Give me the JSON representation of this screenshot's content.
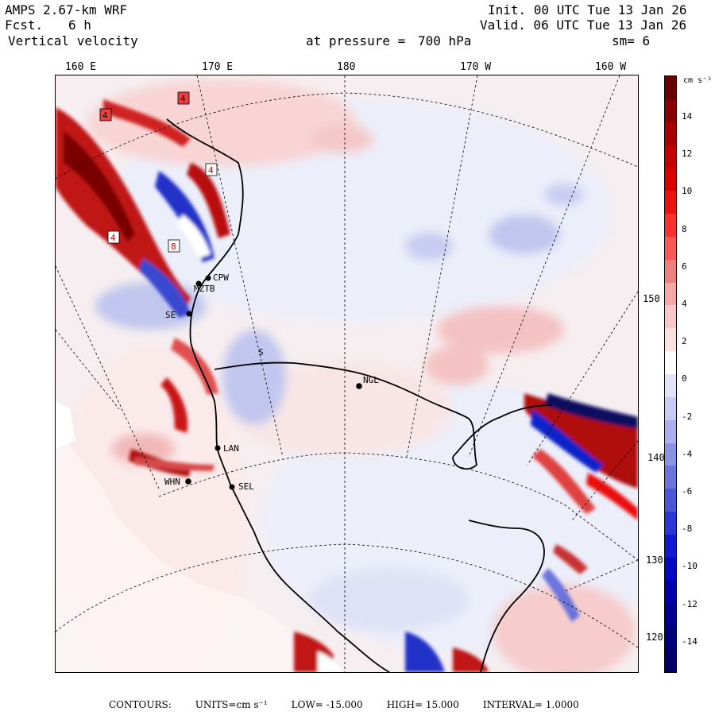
{
  "header": {
    "model": "AMPS 2.67-km WRF",
    "fcst_label": "Fcst.",
    "fcst_value": "6 h",
    "field": "Vertical velocity",
    "init": "Init. 00 UTC Tue 13 Jan 26",
    "valid": "Valid. 06 UTC Tue 13 Jan 26",
    "pressure_label": "at pressure =",
    "pressure_value": "700 hPa",
    "smoothing": "sm= 6"
  },
  "longitude_labels": [
    "160 E",
    "170 E",
    "180",
    "170 W",
    "160 W"
  ],
  "latitude_labels": [
    "150 W",
    "140 W",
    "130 W",
    "120 W"
  ],
  "stations": [
    "CPW",
    "MZTB",
    "SE",
    "S",
    "NGL",
    "LAN",
    "WHN",
    "SEL"
  ],
  "colorbar": {
    "unit": "cm s⁻¹",
    "ticks": [
      "14",
      "12",
      "10",
      "8",
      "6",
      "4",
      "2",
      "0",
      "-2",
      "-4",
      "-6",
      "-8",
      "-10",
      "-12",
      "-14"
    ],
    "colors": [
      "#6a0000",
      "#8a0000",
      "#a80000",
      "#c40000",
      "#d80000",
      "#ec1010",
      "#f83030",
      "#f85858",
      "#f08080",
      "#f4a8a8",
      "#f8c8c8",
      "#fbe2e2",
      "#ffffff",
      "#e4e4f8",
      "#c8ccf4",
      "#aab0ec",
      "#8a92e4",
      "#6c74dc",
      "#4c56d8",
      "#2c36d4",
      "#1018d0",
      "#0008c0",
      "#0000a8",
      "#000090",
      "#00007a",
      "#000066"
    ]
  },
  "footer": {
    "contours": "CONTOURS:",
    "units": "UNITS=cm s⁻¹",
    "low": "LOW= -15.000",
    "high": "HIGH= 15.000",
    "interval": "INTERVAL= 1.0000"
  }
}
